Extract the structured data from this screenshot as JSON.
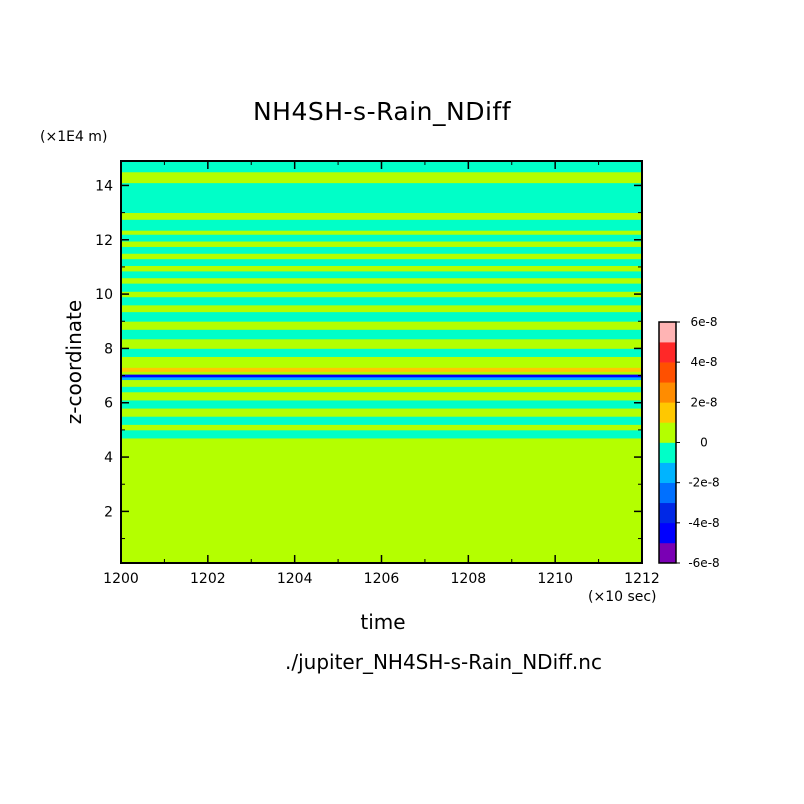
{
  "chart_data": {
    "type": "heatmap",
    "title": "NH4SH-s-Rain_NDiff",
    "xlabel": "time",
    "ylabel": "z-coordinate",
    "x_unit": "(×10 sec)",
    "y_unit": "(×1E4 m)",
    "source_file": "./jupiter_NH4SH-s-Rain_NDiff.nc",
    "xlim": [
      1200,
      1212
    ],
    "ylim": [
      0.1,
      14.9
    ],
    "x_ticks": [
      1200,
      1202,
      1204,
      1206,
      1208,
      1210,
      1212
    ],
    "y_ticks": [
      2,
      4,
      6,
      8,
      10,
      12,
      14
    ],
    "colorbar": {
      "levels": [
        -6e-08,
        -5e-08,
        -4e-08,
        -3e-08,
        -2e-08,
        -1e-08,
        0,
        1e-08,
        2e-08,
        3e-08,
        4e-08,
        5e-08,
        6e-08
      ],
      "colors": [
        "#7a00b4",
        "#0000ff",
        "#0028e6",
        "#0070ff",
        "#00b4ff",
        "#00ffc8",
        "#b4ff00",
        "#ffc800",
        "#ff8c00",
        "#ff5000",
        "#ff2828",
        "#ffb4b4"
      ],
      "tick_labels": [
        "6e-8",
        "4e-8",
        "2e-8",
        "0",
        "-2e-8",
        "-4e-8",
        "-6e-8"
      ]
    },
    "bands": [
      {
        "z0": 0.1,
        "z1": 4.7,
        "value": "0"
      },
      {
        "z0": 4.7,
        "z1": 5.0,
        "value": "-1e-8"
      },
      {
        "z0": 5.0,
        "z1": 5.2,
        "value": "0"
      },
      {
        "z0": 5.2,
        "z1": 5.5,
        "value": "-1e-8"
      },
      {
        "z0": 5.5,
        "z1": 5.8,
        "value": "0"
      },
      {
        "z0": 5.8,
        "z1": 6.1,
        "value": "-1e-8"
      },
      {
        "z0": 6.1,
        "z1": 6.4,
        "value": "0"
      },
      {
        "z0": 6.4,
        "z1": 6.6,
        "value": "-1e-8"
      },
      {
        "z0": 6.6,
        "z1": 6.85,
        "value": "0"
      },
      {
        "z0": 6.85,
        "z1": 6.95,
        "value": "-2e-8"
      },
      {
        "z0": 6.95,
        "z1": 7.05,
        "value": "-5e-8"
      },
      {
        "z0": 7.05,
        "z1": 7.15,
        "value": "0"
      },
      {
        "z0": 7.15,
        "z1": 7.3,
        "value": "1e-8"
      },
      {
        "z0": 7.3,
        "z1": 7.7,
        "value": "0"
      },
      {
        "z0": 7.7,
        "z1": 8.0,
        "value": "-1e-8"
      },
      {
        "z0": 8.0,
        "z1": 8.35,
        "value": "0"
      },
      {
        "z0": 8.35,
        "z1": 8.7,
        "value": "-1e-8"
      },
      {
        "z0": 8.7,
        "z1": 9.0,
        "value": "0"
      },
      {
        "z0": 9.0,
        "z1": 9.35,
        "value": "-1e-8"
      },
      {
        "z0": 9.35,
        "z1": 9.6,
        "value": "0"
      },
      {
        "z0": 9.6,
        "z1": 9.9,
        "value": "-1e-8"
      },
      {
        "z0": 9.9,
        "z1": 10.1,
        "value": "0"
      },
      {
        "z0": 10.1,
        "z1": 10.4,
        "value": "-1e-8"
      },
      {
        "z0": 10.4,
        "z1": 10.6,
        "value": "0"
      },
      {
        "z0": 10.6,
        "z1": 10.85,
        "value": "-1e-8"
      },
      {
        "z0": 10.85,
        "z1": 11.05,
        "value": "0"
      },
      {
        "z0": 11.05,
        "z1": 11.3,
        "value": "-1e-8"
      },
      {
        "z0": 11.3,
        "z1": 11.5,
        "value": "0"
      },
      {
        "z0": 11.5,
        "z1": 11.75,
        "value": "-1e-8"
      },
      {
        "z0": 11.75,
        "z1": 11.95,
        "value": "0"
      },
      {
        "z0": 11.95,
        "z1": 12.2,
        "value": "-1e-8"
      },
      {
        "z0": 12.2,
        "z1": 12.35,
        "value": "0"
      },
      {
        "z0": 12.35,
        "z1": 12.75,
        "value": "-1e-8"
      },
      {
        "z0": 12.75,
        "z1": 13.0,
        "value": "0"
      },
      {
        "z0": 13.0,
        "z1": 14.1,
        "value": "-1e-8"
      },
      {
        "z0": 14.1,
        "z1": 14.5,
        "value": "0"
      },
      {
        "z0": 14.5,
        "z1": 14.9,
        "value": "-1e-8"
      }
    ]
  }
}
